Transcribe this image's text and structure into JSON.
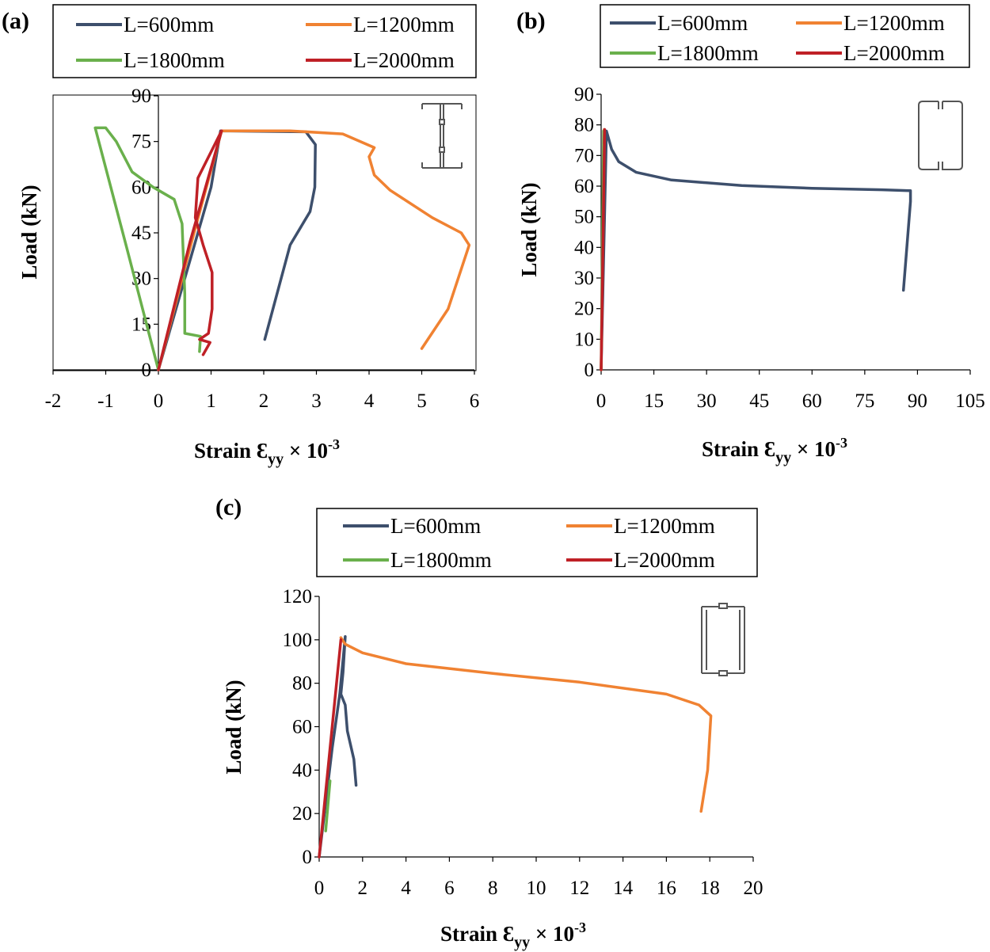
{
  "colors": {
    "L600": "#3d4f6c",
    "L1200": "#f08232",
    "L1800": "#6ab04c",
    "L2000": "#bf2026"
  },
  "chart_data": [
    {
      "type": "line",
      "panel_label": "(a)",
      "xlim": [
        -2,
        6
      ],
      "ylim": [
        0,
        90
      ],
      "xticks": [
        -2,
        -1,
        0,
        1,
        2,
        3,
        4,
        5,
        6
      ],
      "yticks": [
        0,
        15,
        30,
        45,
        60,
        75,
        90
      ],
      "xlabel": {
        "main": "Strain ",
        "symbol": "Ɛ",
        "sub": "yy",
        "mid": " × 10",
        "sup": "-3"
      },
      "ylabel": "Load (kN)",
      "grid": false,
      "legend_placement": "top",
      "series": [
        {
          "name": "L=600mm",
          "color_key": "L600",
          "points": [
            [
              0,
              0
            ],
            [
              0.5,
              30
            ],
            [
              1.0,
              60
            ],
            [
              1.18,
              78.5
            ],
            [
              2.8,
              78.2
            ],
            [
              2.98,
              74
            ],
            [
              2.97,
              60
            ],
            [
              2.88,
              52
            ],
            [
              2.5,
              41
            ],
            [
              2.02,
              10
            ]
          ]
        },
        {
          "name": "L=1200mm",
          "color_key": "L1200",
          "points": [
            [
              0,
              0
            ],
            [
              0.6,
              40
            ],
            [
              1.2,
              78.5
            ],
            [
              2.5,
              78.5
            ],
            [
              3.5,
              77.5
            ],
            [
              4.1,
              73
            ],
            [
              4.0,
              70
            ],
            [
              4.1,
              64
            ],
            [
              4.4,
              59
            ],
            [
              5.2,
              50
            ],
            [
              5.75,
              45
            ],
            [
              5.9,
              41
            ],
            [
              5.5,
              20
            ],
            [
              5.0,
              7
            ]
          ]
        },
        {
          "name": "L=1800mm",
          "color_key": "L1800",
          "points": [
            [
              0,
              0
            ],
            [
              -0.6,
              40
            ],
            [
              -1.2,
              79.5
            ],
            [
              -1.0,
              79.5
            ],
            [
              -0.8,
              75
            ],
            [
              -0.5,
              65
            ],
            [
              -0.1,
              60
            ],
            [
              0.3,
              56
            ],
            [
              0.45,
              48
            ],
            [
              0.5,
              25
            ],
            [
              0.5,
              12
            ],
            [
              0.8,
              11
            ],
            [
              0.78,
              6
            ]
          ]
        },
        {
          "name": "L=2000mm",
          "color_key": "L2000",
          "points": [
            [
              0,
              0
            ],
            [
              0.6,
              42
            ],
            [
              1.2,
              78.5
            ],
            [
              0.75,
              63
            ],
            [
              0.7,
              50
            ],
            [
              0.85,
              41
            ],
            [
              1.02,
              32
            ],
            [
              1.02,
              20
            ],
            [
              0.95,
              12
            ],
            [
              0.78,
              10
            ],
            [
              0.98,
              9
            ],
            [
              0.85,
              5
            ]
          ]
        }
      ]
    },
    {
      "type": "line",
      "panel_label": "(b)",
      "xlim": [
        0,
        105
      ],
      "ylim": [
        0,
        90
      ],
      "xticks": [
        0,
        15,
        30,
        45,
        60,
        75,
        90,
        105
      ],
      "yticks": [
        0,
        10,
        20,
        30,
        40,
        50,
        60,
        70,
        80,
        90
      ],
      "xlabel": {
        "main": "Strain ",
        "symbol": "Ɛ",
        "sub": "yy",
        "mid": " × 10",
        "sup": "-3"
      },
      "ylabel": "Load (kN)",
      "grid": false,
      "legend_placement": "top",
      "series": [
        {
          "name": "L=600mm",
          "color_key": "L600",
          "points": [
            [
              0,
              0
            ],
            [
              1.5,
              78
            ],
            [
              3,
              72
            ],
            [
              5,
              68
            ],
            [
              10,
              64.5
            ],
            [
              20,
              62
            ],
            [
              40,
              60.2
            ],
            [
              60,
              59.3
            ],
            [
              80,
              58.8
            ],
            [
              88,
              58.5
            ],
            [
              88,
              55
            ],
            [
              86,
              26
            ]
          ]
        },
        {
          "name": "L=1200mm",
          "color_key": "L1200",
          "points": [
            [
              0,
              0
            ],
            [
              0.9,
              78.5
            ]
          ]
        },
        {
          "name": "L=1800mm",
          "color_key": "L1800",
          "points": [
            [
              0,
              0
            ],
            [
              0.7,
              78
            ]
          ]
        },
        {
          "name": "L=2000mm",
          "color_key": "L2000",
          "points": [
            [
              0,
              0
            ],
            [
              1.0,
              78.5
            ],
            [
              0.9,
              74
            ]
          ]
        }
      ]
    },
    {
      "type": "line",
      "panel_label": "(c)",
      "xlim": [
        0,
        20
      ],
      "ylim": [
        0,
        120
      ],
      "xticks": [
        0,
        2,
        4,
        6,
        8,
        10,
        12,
        14,
        16,
        18,
        20
      ],
      "yticks": [
        0,
        20,
        40,
        60,
        80,
        100,
        120
      ],
      "xlabel": {
        "main": "Strain ",
        "symbol": "Ɛ",
        "sub": "yy",
        "mid": " × 10",
        "sup": "-3"
      },
      "ylabel": "Load (kN)",
      "grid": false,
      "legend_placement": "top",
      "series": [
        {
          "name": "L=600mm",
          "color_key": "L600",
          "points": [
            [
              0,
              0
            ],
            [
              0.6,
              50
            ],
            [
              0.95,
              75
            ],
            [
              1.2,
              101.5
            ],
            [
              1.1,
              85
            ],
            [
              1.0,
              75
            ],
            [
              1.2,
              70
            ],
            [
              1.3,
              58
            ],
            [
              1.6,
              45
            ],
            [
              1.7,
              33
            ]
          ]
        },
        {
          "name": "L=1200mm",
          "color_key": "L1200",
          "points": [
            [
              1.0,
              101
            ],
            [
              1.2,
              98
            ],
            [
              2,
              94
            ],
            [
              4,
              89
            ],
            [
              8,
              84.5
            ],
            [
              12,
              80.5
            ],
            [
              16,
              75
            ],
            [
              17.5,
              70
            ],
            [
              18.05,
              65
            ],
            [
              17.9,
              40
            ],
            [
              17.6,
              21
            ]
          ]
        },
        {
          "name": "L=1800mm",
          "color_key": "L1800",
          "points": [
            [
              0.3,
              12
            ],
            [
              0.5,
              35
            ]
          ]
        },
        {
          "name": "L=2000mm",
          "color_key": "L2000",
          "points": [
            [
              0,
              0
            ],
            [
              0.5,
              50
            ],
            [
              1.0,
              100
            ]
          ]
        }
      ]
    }
  ]
}
